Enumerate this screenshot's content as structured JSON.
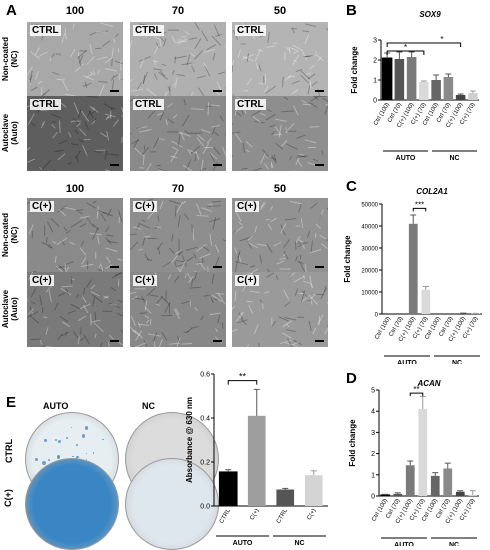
{
  "panel_letters": {
    "a": "A",
    "b": "B",
    "c": "C",
    "d": "D",
    "e": "E"
  },
  "panel_a": {
    "columns": [
      "100",
      "70",
      "50"
    ],
    "row_labels": {
      "nc": [
        "Non-coated",
        "(NC)"
      ],
      "auto": [
        "Autoclave",
        "(Auto)"
      ]
    },
    "tile_labels": {
      "ctrl": "CTRL",
      "cplus": "C(+)"
    },
    "tile_tones": {
      "ctrl_nc": [
        "#a8a8a8",
        "#b0b0b0",
        "#b4b4b4"
      ],
      "ctrl_auto": [
        "#5e5e5e",
        "#8a8a8a",
        "#8e8e8e"
      ],
      "cplus_nc": [
        "#8a8a8a",
        "#8e8e8e",
        "#929292"
      ],
      "cplus_auto": [
        "#7a7a7a",
        "#888888",
        "#9a9a9a"
      ]
    }
  },
  "panel_e_images": {
    "col_labels": [
      "AUTO",
      "NC"
    ],
    "row_labels": [
      "CTRL",
      "C(+)"
    ],
    "dish_colors": {
      "ctrl_auto": "#e6eef2",
      "ctrl_nc": "#dcdcdc",
      "cplus_auto": "#3a86c4",
      "cplus_nc": "#dfe7ee"
    }
  },
  "chart_data": [
    {
      "id": "B",
      "type": "bar",
      "title": "SOX9",
      "ylabel": "Fold change",
      "ylim": [
        0,
        3
      ],
      "yticks": [
        "0",
        "1",
        "2",
        "3"
      ],
      "categories": [
        "Ctrl (100)",
        "Ctrl (70)",
        "C(+) (100)",
        "C(+) (70)",
        "Ctrl (100)",
        "Ctrl (70)",
        "C(+) (100)",
        "C(+) (70)"
      ],
      "values": [
        2.1,
        2.05,
        2.15,
        0.9,
        1.0,
        1.15,
        0.25,
        0.35
      ],
      "errors": [
        0.25,
        0.35,
        0.25,
        0.05,
        0.25,
        0.15,
        0.05,
        0.1
      ],
      "colors": [
        "#000000",
        "#555555",
        "#7a7a7a",
        "#d9d9d9",
        "#666666",
        "#8a8a8a",
        "#444444",
        "#cfcfcf"
      ],
      "groups": [
        {
          "label": "AUTO"
        },
        {
          "label": "NC"
        }
      ],
      "significance": [
        "*",
        "*"
      ]
    },
    {
      "id": "C",
      "type": "bar",
      "title": "COL2A1",
      "ylabel": "Fold change",
      "ylim": [
        0,
        50000
      ],
      "yticks": [
        "0",
        "10000",
        "20000",
        "30000",
        "40000",
        "50000"
      ],
      "categories": [
        "Ctrl (100)",
        "Ctrl (70)",
        "C(+) (100)",
        "C(+) (70)",
        "Ctrl (100)",
        "Ctrl (70)",
        "C(+) (100)",
        "C(+) (70)"
      ],
      "values": [
        0,
        0,
        41000,
        11000,
        0,
        0,
        300,
        200
      ],
      "errors": [
        0,
        0,
        4000,
        1500,
        0,
        0,
        100,
        100
      ],
      "colors": [
        "#000000",
        "#555555",
        "#7a7a7a",
        "#d9d9d9",
        "#666666",
        "#8a8a8a",
        "#444444",
        "#cfcfcf"
      ],
      "groups": [
        {
          "label": "AUTO"
        },
        {
          "label": "NC"
        }
      ],
      "significance": [
        "***"
      ]
    },
    {
      "id": "D",
      "type": "bar",
      "title": "ACAN",
      "ylabel": "Fold change",
      "ylim": [
        0,
        5
      ],
      "yticks": [
        "0",
        "1",
        "2",
        "3",
        "4",
        "5"
      ],
      "categories": [
        "Ctrl (100)",
        "Ctrl (70)",
        "C(+) (100)",
        "C(+) (70)",
        "Ctrl (100)",
        "Ctrl (70)",
        "C(+) (100)",
        "C(+) (70)"
      ],
      "values": [
        0.05,
        0.1,
        1.45,
        4.1,
        0.95,
        1.3,
        0.2,
        0.05
      ],
      "errors": [
        0.03,
        0.05,
        0.2,
        0.6,
        0.15,
        0.25,
        0.05,
        0.2
      ],
      "colors": [
        "#000000",
        "#555555",
        "#7a7a7a",
        "#d9d9d9",
        "#666666",
        "#8a8a8a",
        "#444444",
        "#cfcfcf"
      ],
      "groups": [
        {
          "label": "AUTO"
        },
        {
          "label": "NC"
        }
      ],
      "significance": [
        "**"
      ]
    },
    {
      "id": "E",
      "type": "bar",
      "title": "",
      "ylabel": "Absorbance @ 630 nm",
      "ylim": [
        0,
        0.6
      ],
      "yticks": [
        "0.0",
        "0.2",
        "0.4",
        "0.6"
      ],
      "categories": [
        "CTRL",
        "C(+)",
        "CTRL",
        "C(+)"
      ],
      "values": [
        0.155,
        0.41,
        0.075,
        0.14
      ],
      "errors": [
        0.01,
        0.12,
        0.005,
        0.02
      ],
      "colors": [
        "#000000",
        "#9e9e9e",
        "#555555",
        "#d4d4d4"
      ],
      "groups": [
        {
          "label": "AUTO"
        },
        {
          "label": "NC"
        }
      ],
      "significance": [
        "**"
      ]
    }
  ]
}
